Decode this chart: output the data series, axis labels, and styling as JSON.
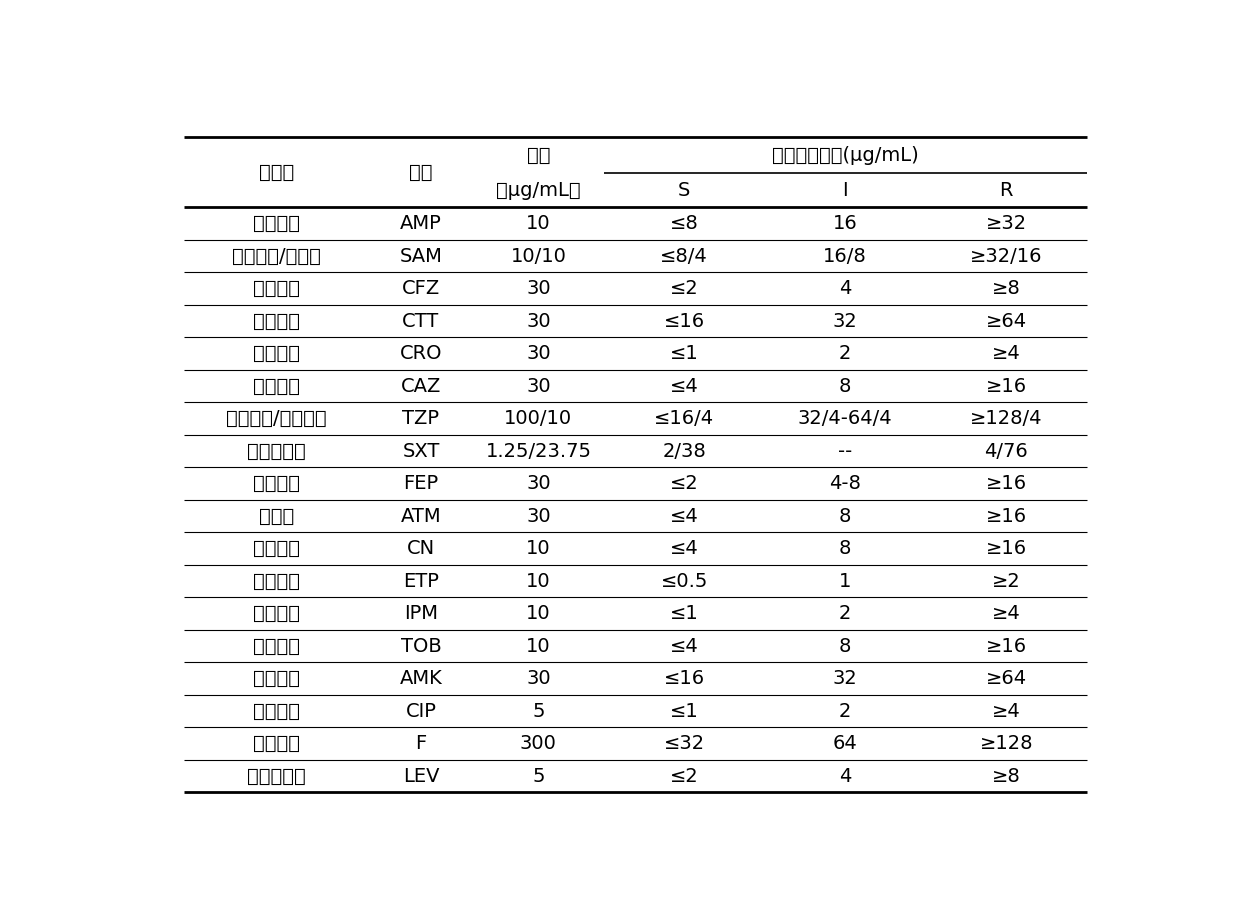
{
  "header_col1": "抗生素",
  "header_col2": "简称",
  "header_col3_line1": "浓度",
  "header_col3_line2": "（μg/mL）",
  "header_span": "最小抑菌浓度(μg/mL)",
  "header_s": "S",
  "header_i": "I",
  "header_r": "R",
  "rows": [
    [
      "氨苄西林",
      "AMP",
      "10",
      "≤8",
      "16",
      "≥32"
    ],
    [
      "氨苄西林/舒巴坦",
      "SAM",
      "10/10",
      "≤8/4",
      "16/8",
      "≥32/16"
    ],
    [
      "头孢唑林",
      "CFZ",
      "30",
      "≤2",
      "4",
      "≥8"
    ],
    [
      "头孢替坦",
      "CTT",
      "30",
      "≤16",
      "32",
      "≥64"
    ],
    [
      "头孢曲松",
      "CRO",
      "30",
      "≤1",
      "2",
      "≥4"
    ],
    [
      "头孢他啶",
      "CAZ",
      "30",
      "≤4",
      "8",
      "≥16"
    ],
    [
      "哌拉西林/他唑巴坦",
      "TZP",
      "100/10",
      "≤16/4",
      "32/4-64/4",
      "≥128/4"
    ],
    [
      "复方新诺明",
      "SXT",
      "1.25/23.75",
      "2/38",
      "--",
      "4/76"
    ],
    [
      "头孢吡肟",
      "FEP",
      "30",
      "≤2",
      "4-8",
      "≥16"
    ],
    [
      "氨曲南",
      "ATM",
      "30",
      "≤4",
      "8",
      "≥16"
    ],
    [
      "庆大霉素",
      "CN",
      "10",
      "≤4",
      "8",
      "≥16"
    ],
    [
      "厄他培南",
      "ETP",
      "10",
      "≤0.5",
      "1",
      "≥2"
    ],
    [
      "亚胺培南",
      "IPM",
      "10",
      "≤1",
      "2",
      "≥4"
    ],
    [
      "妥布霉素",
      "TOB",
      "10",
      "≤4",
      "8",
      "≥16"
    ],
    [
      "阿米卡星",
      "AMK",
      "30",
      "≤16",
      "32",
      "≥64"
    ],
    [
      "环丙沙星",
      "CIP",
      "5",
      "≤1",
      "2",
      "≥4"
    ],
    [
      "呋喃妥因",
      "F",
      "300",
      "≤32",
      "64",
      "≥128"
    ],
    [
      "左氧氟沙星",
      "LEV",
      "5",
      "≤2",
      "4",
      "≥8"
    ]
  ],
  "bg_color": "#ffffff",
  "text_color": "#000000",
  "line_color": "#000000",
  "font_size": 14,
  "header_font_size": 14,
  "lw_thick": 2.0,
  "lw_thin": 0.8,
  "lw_mid": 1.2
}
